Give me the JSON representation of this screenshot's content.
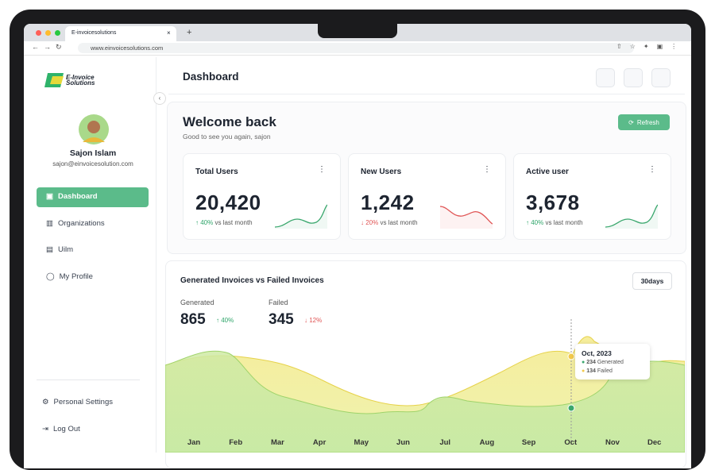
{
  "browser": {
    "tab_title": "E-invoicesolutions",
    "url": "www.einvoicesolutions.com"
  },
  "sidebar": {
    "brand": [
      "E-Invoice",
      "Solutions"
    ],
    "user": {
      "name": "Sajon Islam",
      "email": "sajon@einvoicesolution.com"
    },
    "nav": [
      "Dashboard",
      "Organizations",
      "Uilm",
      "My Profile"
    ],
    "footer_nav": [
      "Personal Settings",
      "Log Out"
    ]
  },
  "header": {
    "title": "Dashboard"
  },
  "welcome": {
    "title": "Welcome back",
    "subtitle": "Good to see you again, sajon",
    "button": "Refresh"
  },
  "stats": [
    {
      "title": "Total Users",
      "value": "20,420",
      "change": "40%",
      "comparison": "vs last month"
    },
    {
      "title": "New Users",
      "value": "1,242",
      "change": "20%",
      "comparison": "vs last month"
    },
    {
      "title": "Active user",
      "value": "3,678",
      "change": "40%",
      "comparison": "vs last month"
    }
  ],
  "invoice_chart": {
    "title": "Generated Invoices vs Failed Invoices",
    "range": "30days",
    "summary": [
      {
        "label": "Generated",
        "value": "865",
        "change": "40%"
      },
      {
        "label": "Failed",
        "value": "345",
        "change": "12%"
      }
    ],
    "months": [
      "Jan",
      "Feb",
      "Mar",
      "Apr",
      "May",
      "Jun",
      "Jul",
      "Aug",
      "Sep",
      "Oct",
      "Nov",
      "Dec"
    ],
    "tooltip": {
      "title": "Oct, 2023",
      "items": [
        {
          "value": "234",
          "label": "Generated"
        },
        {
          "value": "134",
          "label": "Failed"
        }
      ]
    }
  }
}
